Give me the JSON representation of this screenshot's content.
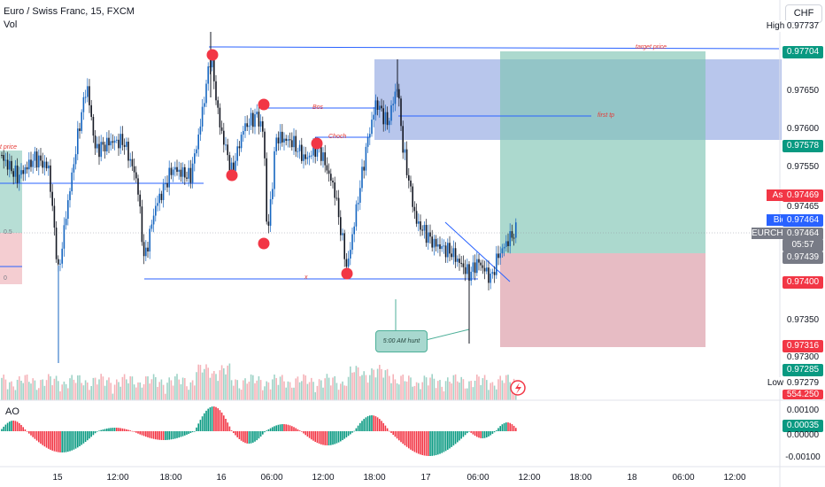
{
  "header": {
    "symbol_title": "Euro / Swiss Franc, 15, FXCM",
    "volume_label": "Vol",
    "currency_button": "CHF"
  },
  "price_axis": {
    "ticks": [
      "0.97737",
      "0.97650",
      "0.97600",
      "0.97550",
      "0.97350",
      "0.97300",
      "0.97279"
    ],
    "labels": {
      "high_tag": "High",
      "low_tag": "Low",
      "ask_tag": "Ask",
      "bid_tag": "Bid",
      "symbol_tag": "EURCHF",
      "target_price": "0.97704",
      "entry_upper": "0.97578",
      "ask_price": "0.97469",
      "ask2_price": "0.97465",
      "bid_price": "0.97464",
      "last_price": "0.97464",
      "countdown": "05:57",
      "stop_upper": "0.97439",
      "red_level": "0.97400",
      "stop_loss": "0.97316",
      "green_level": "0.97285",
      "low_cut": "554.250"
    },
    "colors": {
      "green": "#089981",
      "red": "#f23645",
      "blue": "#2962ff",
      "gray": "#787b86"
    }
  },
  "time_axis": {
    "labels": [
      "15",
      "12:00",
      "18:00",
      "16",
      "06:00",
      "12:00",
      "18:00",
      "17",
      "06:00",
      "12:00",
      "18:00",
      "18",
      "06:00",
      "12:00"
    ]
  },
  "annotations": {
    "target_price": "target price",
    "first_tp": "first tp",
    "bos": "Bos",
    "choch": "Choch",
    "x_mark": "x",
    "hunt_note": "5:00 AM hunt",
    "left_price": "t price",
    "left_05": "0.5",
    "left_0": "0"
  },
  "ao_panel": {
    "title": "AO",
    "ticks": [
      "0.00100",
      "0.00000",
      "-0.00100"
    ],
    "value": "0.00035"
  },
  "icons": {
    "flash": "lightning-icon"
  }
}
